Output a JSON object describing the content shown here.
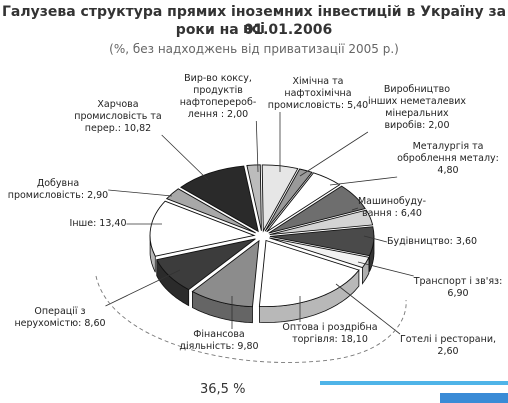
{
  "chart_data": {
    "type": "pie",
    "title_line1": "Галузева структура прямих іноземних інвестицій в Україну за всі",
    "title_line2": "роки на 01.01.2006",
    "subtitle": "(%, без надходжень від приватизації 2005 р.)",
    "total_label": "36,5 %",
    "slices": [
      {
        "id": "vyr-koksu",
        "lines": [
          "Вир-во коксу,",
          "продуктів",
          "нафтоперероб-",
          "лення : 2,00"
        ],
        "value": 2.0,
        "color": "#bcbcbc"
      },
      {
        "id": "khimichna",
        "lines": [
          "Хімічна та",
          "нафтохімічна",
          "промисловість: 5,40"
        ],
        "value": 5.4,
        "color": "#e6e6e6"
      },
      {
        "id": "nemetaleva",
        "lines": [
          "Виробництво",
          "інших неметалевих",
          "мінеральних",
          "виробів: 2,00"
        ],
        "value": 2.0,
        "color": "#9a9a9a"
      },
      {
        "id": "metalurgiya",
        "lines": [
          "Металургія та",
          "оброблення металу:",
          "4,80"
        ],
        "value": 4.8,
        "color": "#ffffff"
      },
      {
        "id": "mashynobud",
        "lines": [
          "Машинобуду-",
          "вання : 6,40"
        ],
        "value": 6.4,
        "color": "#6e6e6e"
      },
      {
        "id": "budivnytstvo",
        "lines": [
          "Будівництво: 3,60"
        ],
        "value": 3.6,
        "color": "#d4d4d4"
      },
      {
        "id": "transport",
        "lines": [
          "Транспорт і зв'яз:",
          "6,90"
        ],
        "value": 6.9,
        "color": "#4a4a4a"
      },
      {
        "id": "goteli",
        "lines": [
          "Готелі і ресторани,",
          "2,60"
        ],
        "value": 2.6,
        "color": "#f2f2f2"
      },
      {
        "id": "torgivlya",
        "lines": [
          "Оптова і роздрібна",
          "торгівля: 18,10"
        ],
        "value": 18.1,
        "color": "#ffffff"
      },
      {
        "id": "finansova",
        "lines": [
          "Фінансова",
          "діяльність: 9,80"
        ],
        "value": 9.8,
        "color": "#8c8c8c"
      },
      {
        "id": "nerukhomist",
        "lines": [
          "Операції з",
          "нерухомістю: 8,60"
        ],
        "value": 8.6,
        "color": "#3c3c3c"
      },
      {
        "id": "inshe",
        "lines": [
          "Інше: 13,40"
        ],
        "value": 13.4,
        "color": "#ffffff"
      },
      {
        "id": "dobuvna",
        "lines": [
          "Добувна",
          "промисловість: 2,90"
        ],
        "value": 2.9,
        "color": "#a8a8a8"
      },
      {
        "id": "kharchova",
        "lines": [
          "Харчова",
          "промисловість та",
          "перер.: 10,82"
        ],
        "value": 10.82,
        "color": "#2a2a2a"
      }
    ]
  }
}
